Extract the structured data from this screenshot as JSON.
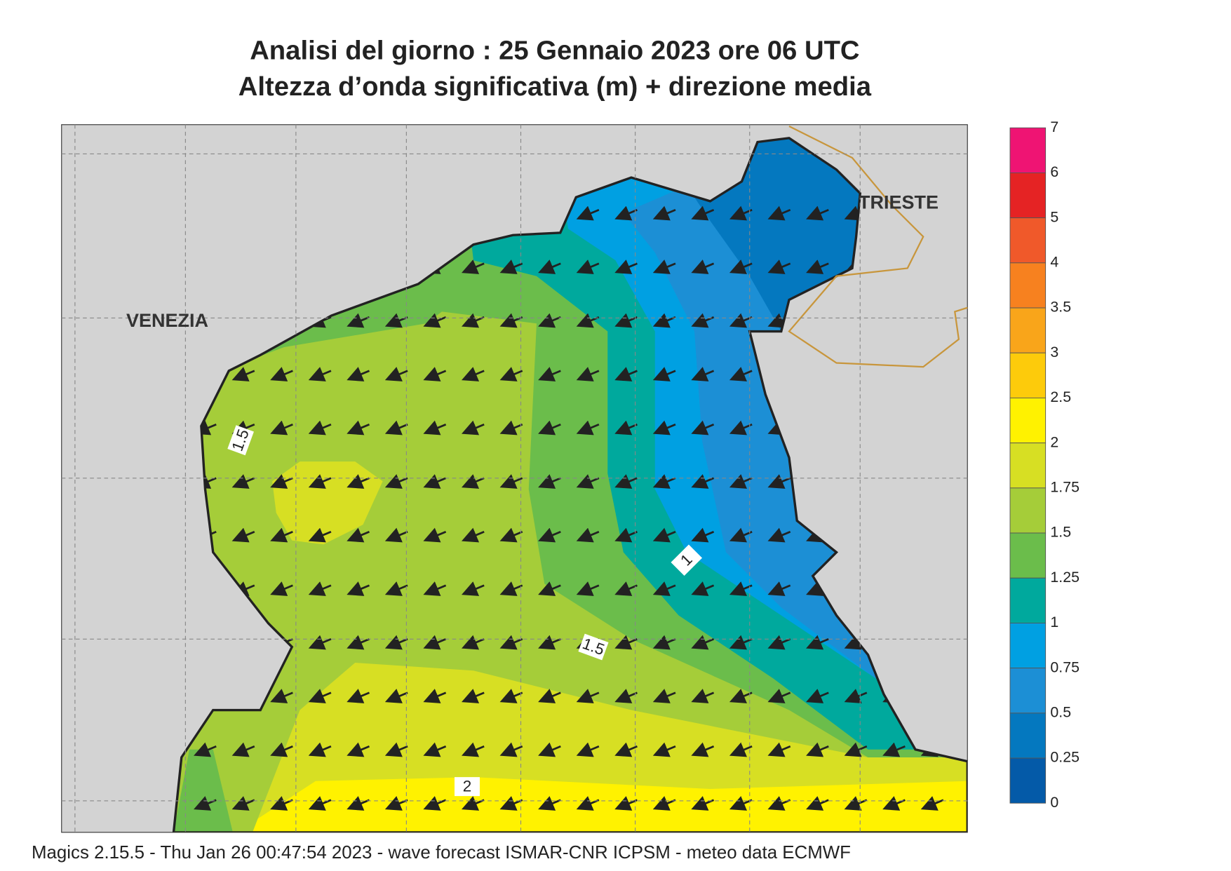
{
  "header": {
    "title": "Analisi del giorno :  25  Gennaio  2023   ore 06 UTC",
    "subtitle": "Altezza d’onda significativa (m) + direzione media"
  },
  "places": [
    {
      "label": "VENEZIA"
    },
    {
      "label": "TRIESTE"
    }
  ],
  "contour_labels": [
    1.5,
    1,
    1.5,
    2
  ],
  "colorbar": {
    "labels": [
      7,
      6,
      5,
      4,
      3.5,
      3,
      2.5,
      2,
      1.75,
      1.5,
      1.25,
      1,
      0.75,
      0.5,
      0.25,
      0
    ],
    "colors": [
      "#ef1473",
      "#e52324",
      "#f0592a",
      "#f7811f",
      "#f9a51a",
      "#fdcb0b",
      "#fff200",
      "#d7df23",
      "#a5cd39",
      "#6bbd4b",
      "#00a99d",
      "#00a0e2",
      "#1c8fd5",
      "#0478bf",
      "#045aa8"
    ]
  },
  "footer": "Magics 2.15.5 - Thu Jan 26 00:47:54 2023 - wave forecast  ISMAR-CNR  ICPSM - meteo data    ECMWF"
}
